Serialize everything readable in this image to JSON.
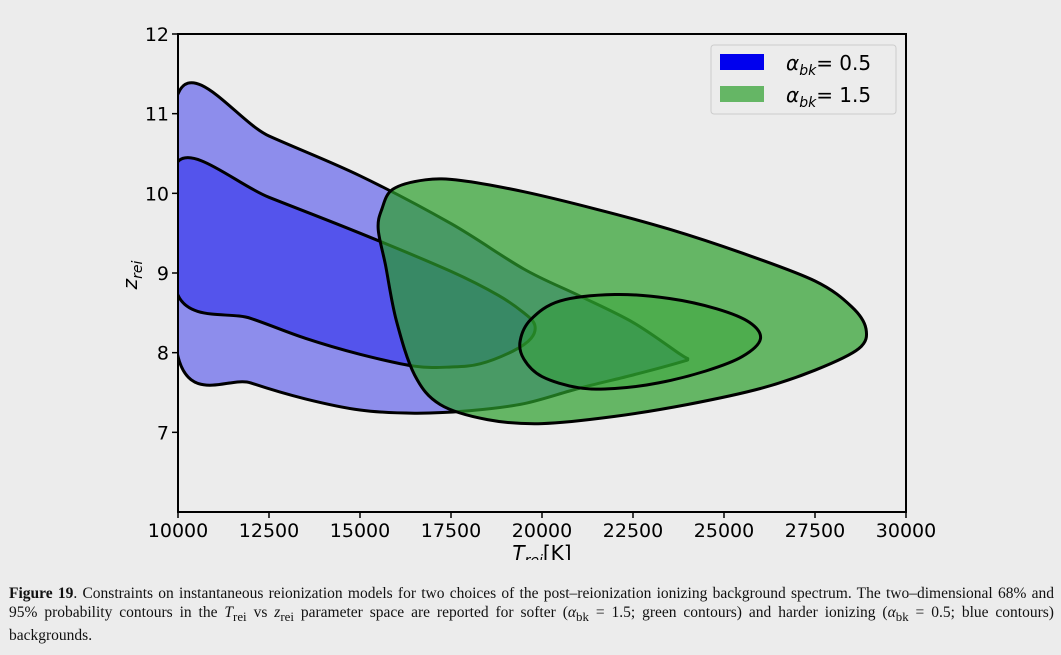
{
  "chart_data": {
    "type": "area",
    "xlabel": "T_rei[K]",
    "xlabel_main": "T",
    "xlabel_sub": "rei",
    "xlabel_unit": "[K]",
    "ylabel": "z_rei",
    "ylabel_main": "z",
    "ylabel_sub": "rei",
    "xlim": [
      10000,
      30000
    ],
    "ylim": [
      6.0,
      12.0
    ],
    "x_ticks": [
      10000,
      12500,
      15000,
      17500,
      20000,
      22500,
      25000,
      27500,
      30000
    ],
    "y_ticks": [
      7,
      8,
      9,
      10,
      11,
      12
    ],
    "grid": false,
    "legend_placement": "top-right",
    "series": [
      {
        "name": "α_bk = 0.5",
        "legend_symbol": "α",
        "legend_sub": "bk",
        "legend_value": "= 0.5",
        "color": "#0000ee",
        "contours": {
          "95": [
            [
              10000,
              11.25
            ],
            [
              12500,
              10.72
            ],
            [
              15000,
              10.22
            ],
            [
              17500,
              9.62
            ],
            [
              19500,
              9.05
            ],
            [
              21000,
              8.72
            ],
            [
              22500,
              8.38
            ],
            [
              23800,
              7.98
            ],
            [
              24000,
              7.92
            ],
            [
              23800,
              7.88
            ],
            [
              22500,
              7.72
            ],
            [
              21000,
              7.55
            ],
            [
              19500,
              7.36
            ],
            [
              18000,
              7.27
            ],
            [
              16500,
              7.24
            ],
            [
              15000,
              7.28
            ],
            [
              13500,
              7.42
            ],
            [
              12000,
              7.62
            ],
            [
              10000,
              7.95
            ]
          ],
          "68": [
            [
              10000,
              10.4
            ],
            [
              12500,
              9.95
            ],
            [
              15000,
              9.5
            ],
            [
              17500,
              9.02
            ],
            [
              18800,
              8.72
            ],
            [
              19500,
              8.5
            ],
            [
              19800,
              8.35
            ],
            [
              19700,
              8.18
            ],
            [
              19200,
              8.02
            ],
            [
              18300,
              7.86
            ],
            [
              17500,
              7.82
            ],
            [
              16500,
              7.83
            ],
            [
              15000,
              7.98
            ],
            [
              13500,
              8.18
            ],
            [
              12000,
              8.43
            ],
            [
              10000,
              8.72
            ]
          ]
        }
      },
      {
        "name": "α_bk = 1.5",
        "legend_symbol": "α",
        "legend_sub": "bk",
        "legend_value": "= 1.5",
        "color": "#2ca02c",
        "contours": {
          "95": [
            [
              15600,
              9.8
            ],
            [
              15900,
              10.05
            ],
            [
              16800,
              10.17
            ],
            [
              17800,
              10.16
            ],
            [
              19500,
              10.02
            ],
            [
              21500,
              9.8
            ],
            [
              23500,
              9.55
            ],
            [
              25500,
              9.25
            ],
            [
              27500,
              8.9
            ],
            [
              28500,
              8.58
            ],
            [
              28900,
              8.3
            ],
            [
              28700,
              8.05
            ],
            [
              27500,
              7.78
            ],
            [
              26000,
              7.55
            ],
            [
              24000,
              7.35
            ],
            [
              22000,
              7.2
            ],
            [
              20000,
              7.11
            ],
            [
              18500,
              7.16
            ],
            [
              17200,
              7.35
            ],
            [
              16500,
              7.72
            ],
            [
              16000,
              8.4
            ],
            [
              15700,
              9.1
            ],
            [
              15500,
              9.55
            ]
          ],
          "68": [
            [
              19400,
              8.15
            ],
            [
              19700,
              8.42
            ],
            [
              20500,
              8.65
            ],
            [
              22000,
              8.73
            ],
            [
              23500,
              8.68
            ],
            [
              24800,
              8.55
            ],
            [
              25700,
              8.38
            ],
            [
              26000,
              8.17
            ],
            [
              25500,
              7.95
            ],
            [
              24500,
              7.77
            ],
            [
              23200,
              7.62
            ],
            [
              22000,
              7.55
            ],
            [
              21000,
              7.56
            ],
            [
              20000,
              7.7
            ],
            [
              19500,
              7.92
            ]
          ]
        }
      }
    ]
  },
  "caption": {
    "label": "Figure 19",
    "text_1": ". Constraints on instantaneous reionization models for two choices of the post–reionization ionizing background spectrum. The two–dimensional 68% and 95% probability contours in the ",
    "sym_T": "T",
    "sub_rei": "rei",
    "vs": " vs ",
    "sym_z": "z",
    "text_2": " parameter space are reported for softer (",
    "alpha": "α",
    "sub_bk": "bk",
    "soft_value": " = 1.5; green contours) and harder ionizing (",
    "hard_value": " = 0.5; blue contours) backgrounds."
  }
}
